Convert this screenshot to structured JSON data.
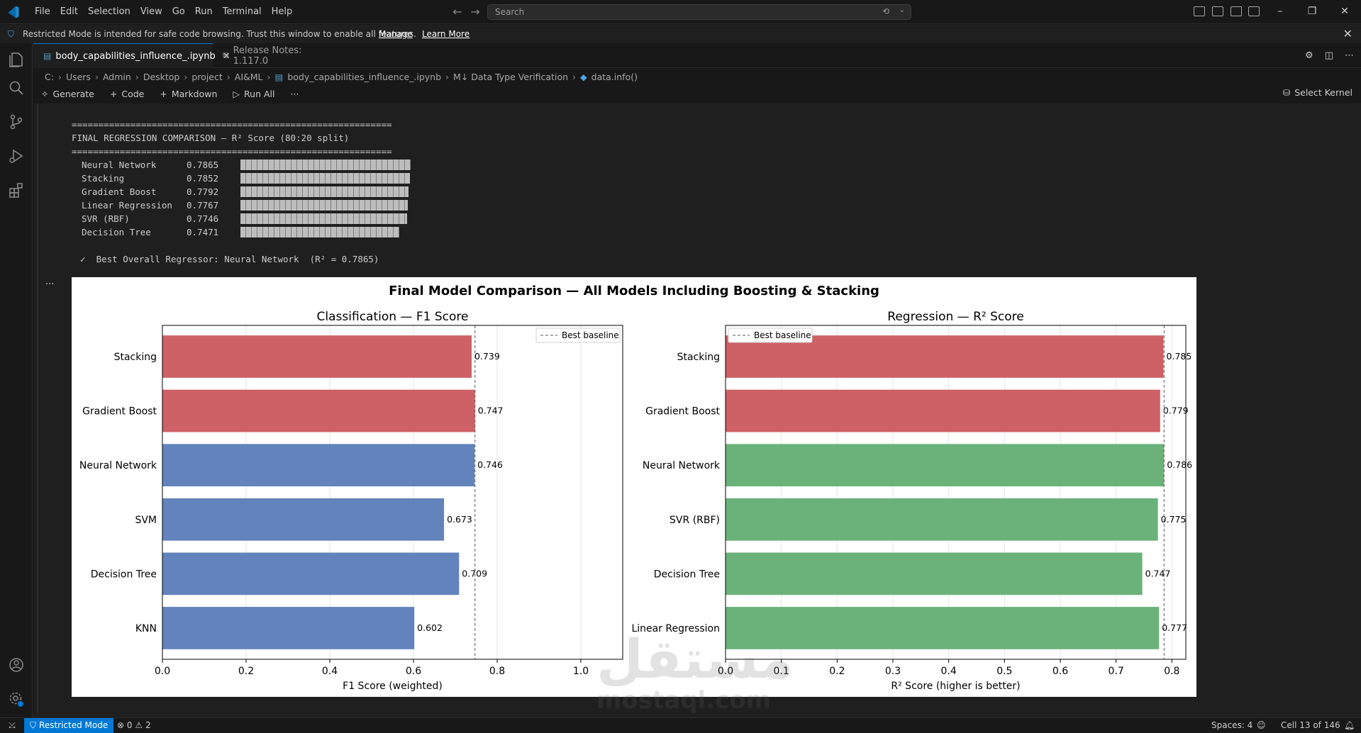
{
  "menu": [
    "File",
    "Edit",
    "Selection",
    "View",
    "Go",
    "Run",
    "Terminal",
    "Help"
  ],
  "search": {
    "placeholder": "Search"
  },
  "banner": {
    "text": "Restricted Mode is intended for safe code browsing. Trust this window to enable all features.",
    "manage": "Manage",
    "learn_more": "Learn More"
  },
  "tabs": [
    {
      "label": "body_capabilities_influence_.ipynb",
      "active": true
    },
    {
      "label": "Release Notes: 1.117.0",
      "active": false
    }
  ],
  "breadcrumb": [
    "C:",
    "Users",
    "Admin",
    "Desktop",
    "project",
    "AI&ML",
    "body_capabilities_influence_.ipynb",
    "M↓ Data Type Verification",
    "data.info()"
  ],
  "toolbar": {
    "generate": "Generate",
    "code": "Code",
    "markdown": "Markdown",
    "run_all": "Run All",
    "more": "···",
    "select_kernel": "Select Kernel"
  },
  "output": {
    "rule": "============================================================",
    "title": "FINAL REGRESSION COMPARISON — R² Score (80:20 split)",
    "rows": [
      {
        "name": "Neural Network",
        "score": "0.7865",
        "fraction": 0.7865
      },
      {
        "name": "Stacking",
        "score": "0.7852",
        "fraction": 0.7852
      },
      {
        "name": "Gradient Boost",
        "score": "0.7792",
        "fraction": 0.7792
      },
      {
        "name": "Linear Regression",
        "score": "0.7767",
        "fraction": 0.7767
      },
      {
        "name": "SVR (RBF)",
        "score": "0.7746",
        "fraction": 0.7746
      },
      {
        "name": "Decision Tree",
        "score": "0.7471",
        "fraction": 0.7471
      }
    ],
    "best": "✓  Best Overall Regressor: Neural Network  (R² = 0.7865)",
    "ellipsis": "..."
  },
  "figure": {
    "suptitle": "Final Model Comparison — All Models Including Boosting & Stacking"
  },
  "chart_data": [
    {
      "type": "bar",
      "orientation": "horizontal",
      "title": "Classification — F1 Score",
      "xlabel": "F1 Score (weighted)",
      "ylabel": "",
      "categories": [
        "Stacking",
        "Gradient Boost",
        "Neural Network",
        "SVM",
        "Decision Tree",
        "KNN"
      ],
      "values": [
        0.739,
        0.747,
        0.746,
        0.673,
        0.709,
        0.602
      ],
      "value_labels": [
        "0.739",
        "0.747",
        "0.746",
        "0.673",
        "0.709",
        "0.602"
      ],
      "colors": [
        "#cd6166",
        "#cd6166",
        "#6283bc",
        "#6283bc",
        "#6283bc",
        "#6283bc"
      ],
      "xlim": [
        0,
        1.1
      ],
      "xticks": [
        0,
        0.2,
        0.4,
        0.6,
        0.8,
        1.0
      ],
      "xtick_labels": [
        "0.0",
        "0.2",
        "0.4",
        "0.6",
        "0.8",
        "1.0"
      ],
      "baseline": 0.747,
      "legend": "Best baseline",
      "legend_loc": "upper right",
      "grid": "x"
    },
    {
      "type": "bar",
      "orientation": "horizontal",
      "title": "Regression — R² Score",
      "xlabel": "R² Score (higher is better)",
      "ylabel": "",
      "categories": [
        "Stacking",
        "Gradient Boost",
        "Neural Network",
        "SVR (RBF)",
        "Decision Tree",
        "Linear Regression"
      ],
      "values": [
        0.785,
        0.779,
        0.786,
        0.775,
        0.747,
        0.777
      ],
      "value_labels": [
        "0.785",
        "0.779",
        "0.786",
        "0.775",
        "0.747",
        "0.777"
      ],
      "colors": [
        "#cd6166",
        "#cd6166",
        "#6bb27a",
        "#6bb27a",
        "#6bb27a",
        "#6bb27a"
      ],
      "xlim": [
        0,
        0.825
      ],
      "xticks": [
        0,
        0.1,
        0.2,
        0.3,
        0.4,
        0.5,
        0.6,
        0.7,
        0.8
      ],
      "xtick_labels": [
        "0.0",
        "0.1",
        "0.2",
        "0.3",
        "0.4",
        "0.5",
        "0.6",
        "0.7",
        "0.8"
      ],
      "baseline": 0.786,
      "legend": "Best baseline",
      "legend_loc": "upper left",
      "grid": "x"
    }
  ],
  "watermark": {
    "arabic": "مستقل",
    "latin": "mostaql.com"
  },
  "status": {
    "restricted": "Restricted Mode",
    "errors": "0",
    "warnings": "2",
    "spaces": "Spaces: 4",
    "cell": "Cell 13 of 146"
  },
  "colors": {
    "accent": "#0078d4",
    "background": "#1f1f1f",
    "red_bar": "#cd6166",
    "blue_bar": "#6283bc",
    "green_bar": "#6bb27a"
  }
}
